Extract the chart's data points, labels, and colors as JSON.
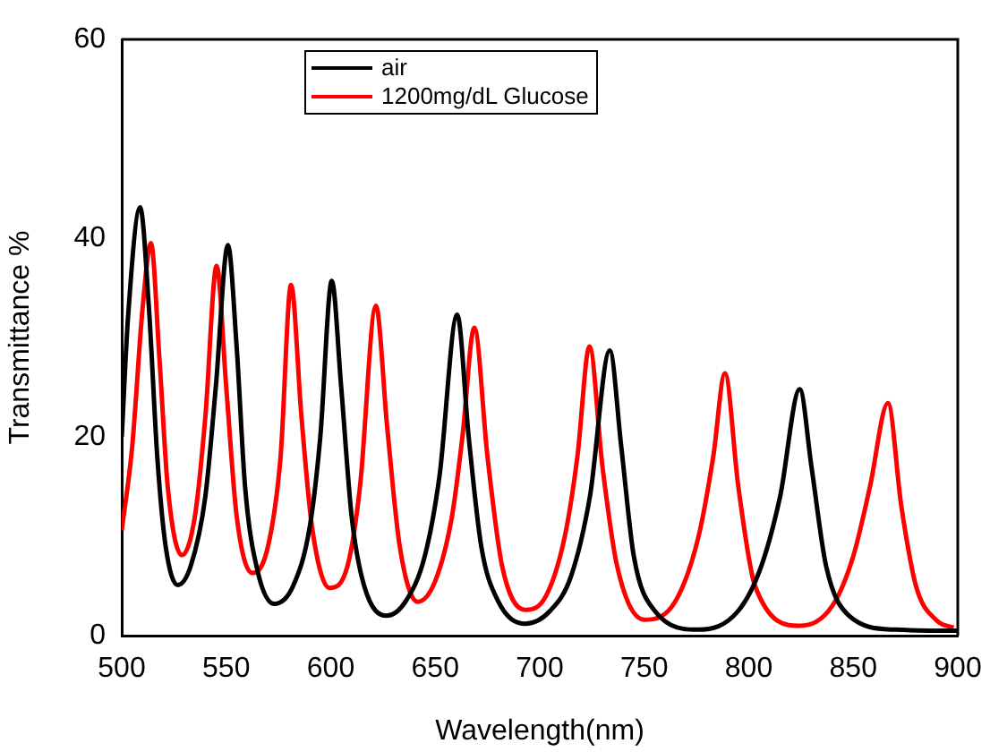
{
  "chart_data": {
    "type": "line",
    "xlabel": "Wavelength(nm)",
    "ylabel": "Transmittance %",
    "xlim": [
      500,
      900
    ],
    "ylim": [
      0,
      60
    ],
    "xticks": [
      500,
      550,
      600,
      650,
      700,
      750,
      800,
      850,
      900
    ],
    "yticks": [
      0,
      20,
      40,
      60
    ],
    "legend": "top",
    "series": [
      {
        "name": "air",
        "color": "#000000",
        "x": [
          500,
          503,
          508.8,
          513,
          517,
          521,
          526.8,
          533,
          540,
          545,
          550.8,
          555,
          559,
          565,
          573,
          582,
          590,
          595,
          600.5,
          605,
          610,
          616,
          626.8,
          636,
          645,
          652,
          660.5,
          666,
          672,
          680,
          693,
          705,
          715,
          724,
          733.5,
          739,
          745,
          755,
          775.8,
          795,
          806,
          815,
          824.4,
          830,
          837,
          848,
          870,
          898,
          900
        ],
        "values": [
          20,
          32,
          43.1,
          33,
          18,
          9,
          5.1,
          7,
          14,
          25,
          39.3,
          29,
          15,
          6.5,
          3.2,
          5,
          11,
          20,
          35.7,
          25,
          12,
          5,
          2.0,
          3.5,
          8,
          16,
          32.3,
          20,
          9,
          3.5,
          1.2,
          2.5,
          6,
          14,
          28.7,
          19,
          8,
          2.5,
          0.6,
          2.5,
          7,
          14,
          24.8,
          17,
          7,
          2,
          0.6,
          0.5,
          0.5
        ]
      },
      {
        "name": "1200mg/dL Glucose",
        "color": "#ff0000",
        "x": [
          500,
          505,
          510,
          514,
          518,
          522,
          528.8,
          535,
          540,
          545.4,
          550,
          555,
          562.5,
          570,
          576,
          581,
          586,
          591,
          599.4,
          608,
          614,
          621.6,
          627,
          633,
          641.6,
          650,
          658,
          663,
          668.7,
          675,
          682,
          693,
          703,
          712,
          718,
          723.8,
          730,
          737,
          750,
          765,
          776,
          783,
          788.6,
          795,
          803,
          824.4,
          840,
          850,
          858,
          866.6,
          873,
          880,
          890,
          898
        ],
        "values": [
          10.6,
          19,
          33,
          39.5,
          28,
          15,
          8.1,
          12,
          22,
          37.2,
          25,
          12,
          6.3,
          9,
          18,
          35.3,
          22,
          11,
          4.8,
          7,
          15,
          33.2,
          21,
          9,
          3.4,
          5.5,
          12,
          20,
          31.0,
          18,
          7,
          2.6,
          4,
          10,
          18,
          29.1,
          17,
          7,
          1.6,
          3.5,
          10,
          18,
          26.4,
          15,
          5,
          1.0,
          3,
          8,
          15,
          23.4,
          13,
          5,
          1.5,
          0.8
        ]
      }
    ]
  }
}
